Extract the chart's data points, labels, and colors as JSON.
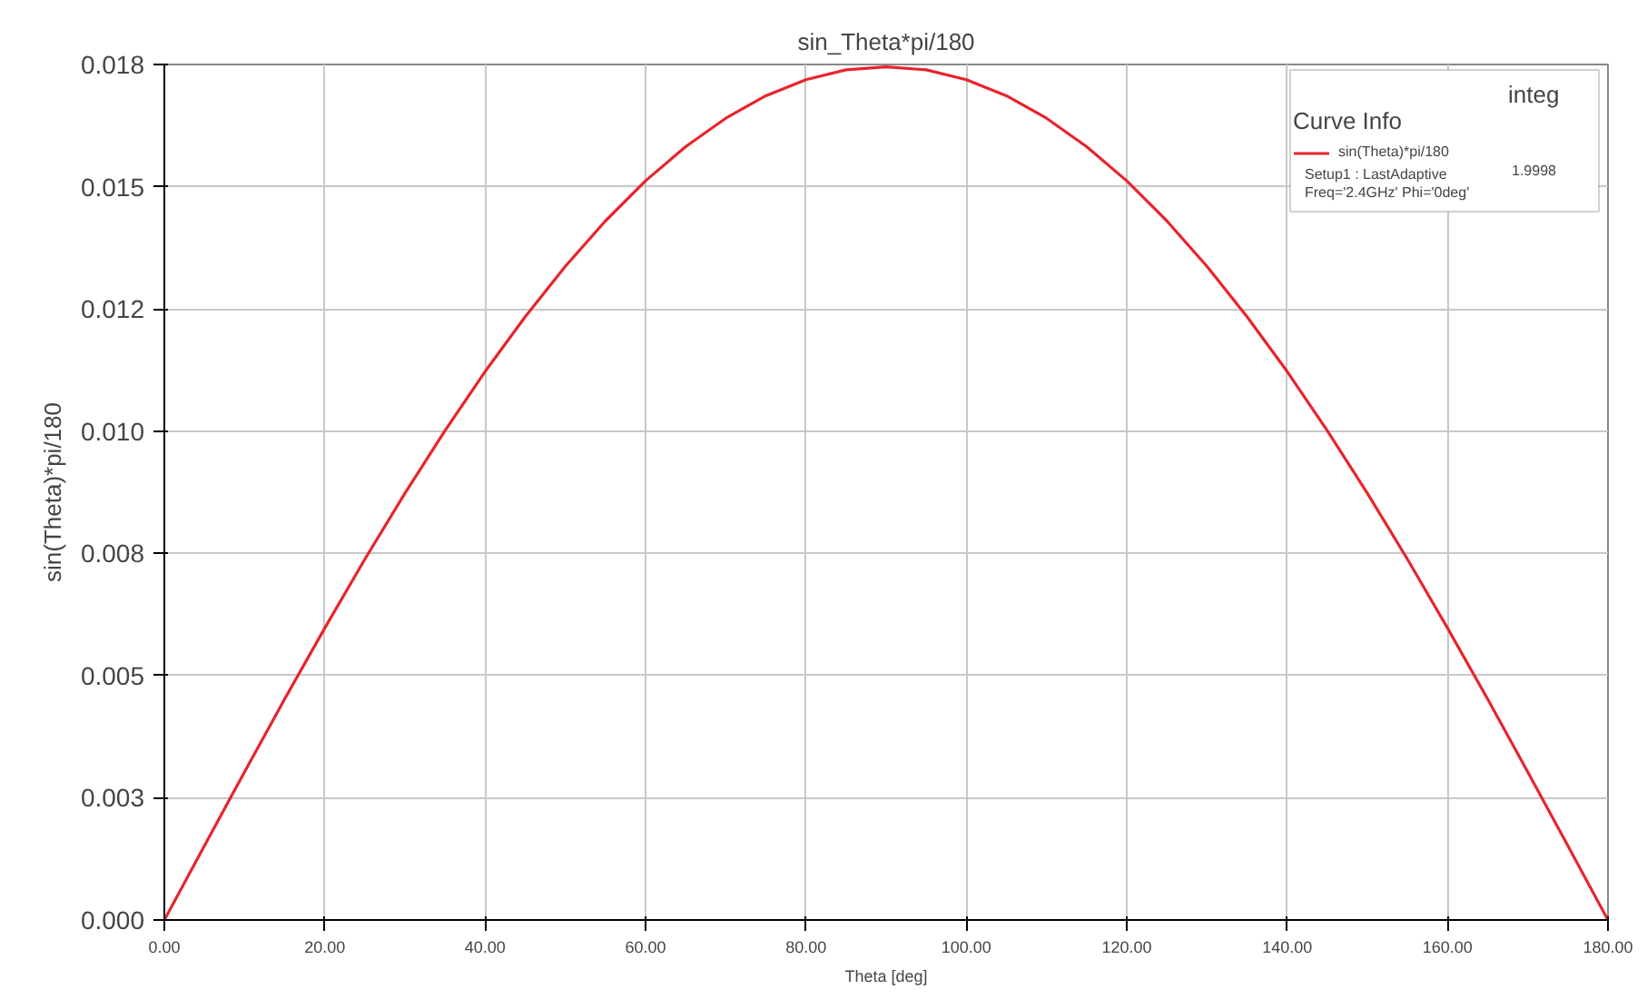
{
  "chart_data": {
    "type": "line",
    "title": "sin_Theta*pi/180",
    "xlabel": "Theta [deg]",
    "ylabel": "sin(Theta)*pi/180",
    "legend_title": "Curve Info",
    "annotations": [
      "integ",
      "Setup1 : LastAdaptive",
      "Freq='2.4GHz' Phi='0deg'",
      "1.9998"
    ],
    "x": [
      0,
      5,
      10,
      15,
      20,
      25,
      30,
      35,
      40,
      45,
      50,
      55,
      60,
      65,
      70,
      75,
      80,
      85,
      90,
      95,
      100,
      105,
      110,
      115,
      120,
      125,
      130,
      135,
      140,
      145,
      150,
      155,
      160,
      165,
      170,
      175,
      180
    ],
    "series": [
      {
        "name": "sin(Theta)*pi/180",
        "color": "#e8242c",
        "values": [
          0,
          0.00152,
          0.00303,
          0.00452,
          0.00597,
          0.00738,
          0.00873,
          0.01001,
          0.01122,
          0.01234,
          0.01337,
          0.0143,
          0.01512,
          0.01582,
          0.0164,
          0.01686,
          0.01719,
          0.01739,
          0.01745,
          0.01739,
          0.01719,
          0.01686,
          0.0164,
          0.01582,
          0.01512,
          0.0143,
          0.01337,
          0.01234,
          0.01122,
          0.01001,
          0.00873,
          0.00738,
          0.00597,
          0.00452,
          0.00303,
          0.00152,
          0
        ]
      }
    ],
    "xlim": [
      0,
      180
    ],
    "ylim": [
      0,
      0.0175
    ],
    "xticks": [
      {
        "value": 0,
        "label": "0.00"
      },
      {
        "value": 20,
        "label": "20.00"
      },
      {
        "value": 40,
        "label": "40.00"
      },
      {
        "value": 60,
        "label": "60.00"
      },
      {
        "value": 80,
        "label": "80.00"
      },
      {
        "value": 100,
        "label": "100.00"
      },
      {
        "value": 120,
        "label": "120.00"
      },
      {
        "value": 140,
        "label": "140.00"
      },
      {
        "value": 160,
        "label": "160.00"
      },
      {
        "value": 180,
        "label": "180.00"
      }
    ],
    "yticks": [
      {
        "value": 0,
        "label": "0.000"
      },
      {
        "value": 0.0025,
        "label": "0.003"
      },
      {
        "value": 0.005,
        "label": "0.005"
      },
      {
        "value": 0.0075,
        "label": "0.008"
      },
      {
        "value": 0.01,
        "label": "0.010"
      },
      {
        "value": 0.0125,
        "label": "0.012"
      },
      {
        "value": 0.015,
        "label": "0.015"
      },
      {
        "value": 0.0175,
        "label": "0.018"
      }
    ],
    "grid": true,
    "legend": "top right",
    "marker": "none",
    "line_style": "solid"
  }
}
